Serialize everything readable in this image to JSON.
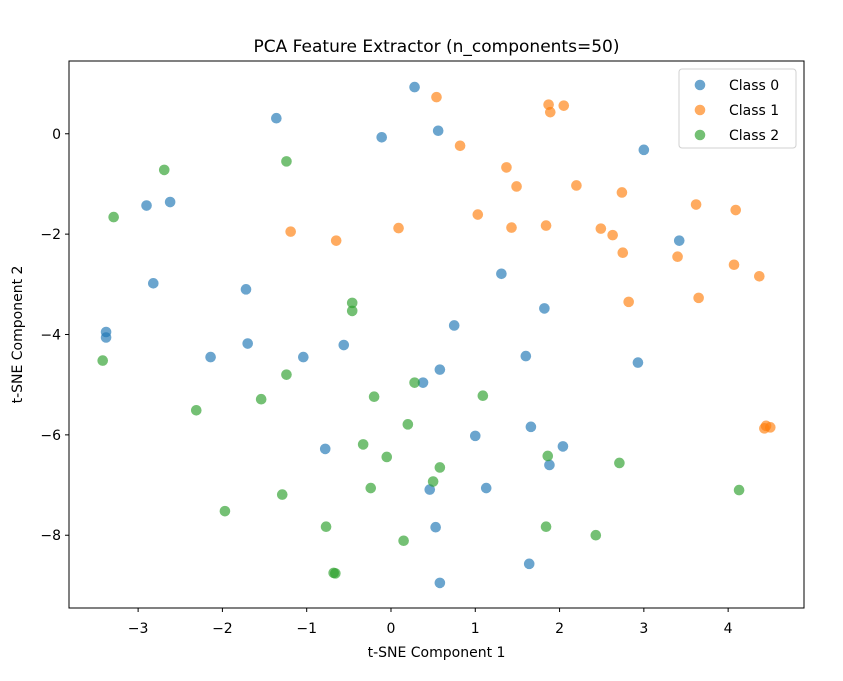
{
  "chart_data": {
    "type": "scatter",
    "title": "PCA Feature Extractor (n_components=50)",
    "xlabel": "t-SNE Component 1",
    "ylabel": "t-SNE Component 2",
    "xlim": [
      -3.82,
      4.9
    ],
    "ylim": [
      -9.45,
      1.45
    ],
    "xticks": [
      -3,
      -2,
      -1,
      0,
      1,
      2,
      3,
      4
    ],
    "yticks": [
      0,
      -2,
      -4,
      -6,
      -8
    ],
    "grid": false,
    "legend_position": "top-right",
    "series": [
      {
        "name": "Class 0",
        "color": "#1f77b4",
        "points": [
          [
            0.28,
            0.93
          ],
          [
            0.56,
            0.06
          ],
          [
            -0.11,
            -0.07
          ],
          [
            -1.36,
            0.31
          ],
          [
            3.0,
            -0.32
          ],
          [
            -2.9,
            -1.43
          ],
          [
            -2.62,
            -1.36
          ],
          [
            3.42,
            -2.13
          ],
          [
            -2.82,
            -2.98
          ],
          [
            -1.72,
            -3.1
          ],
          [
            1.31,
            -2.79
          ],
          [
            1.82,
            -3.48
          ],
          [
            -3.38,
            -3.95
          ],
          [
            -3.38,
            -4.06
          ],
          [
            0.75,
            -3.82
          ],
          [
            -1.7,
            -4.18
          ],
          [
            -2.14,
            -4.45
          ],
          [
            -1.04,
            -4.45
          ],
          [
            -0.56,
            -4.21
          ],
          [
            1.6,
            -4.43
          ],
          [
            0.58,
            -4.7
          ],
          [
            2.93,
            -4.56
          ],
          [
            0.38,
            -4.96
          ],
          [
            1.0,
            -6.02
          ],
          [
            1.66,
            -5.84
          ],
          [
            2.04,
            -6.23
          ],
          [
            -0.78,
            -6.28
          ],
          [
            1.88,
            -6.6
          ],
          [
            0.46,
            -7.09
          ],
          [
            1.13,
            -7.06
          ],
          [
            0.53,
            -7.84
          ],
          [
            1.64,
            -8.57
          ],
          [
            0.58,
            -8.95
          ]
        ]
      },
      {
        "name": "Class 1",
        "color": "#ff7f0e",
        "points": [
          [
            0.54,
            0.73
          ],
          [
            1.87,
            0.58
          ],
          [
            2.05,
            0.56
          ],
          [
            1.89,
            0.43
          ],
          [
            0.82,
            -0.24
          ],
          [
            1.37,
            -0.67
          ],
          [
            1.49,
            -1.05
          ],
          [
            2.2,
            -1.03
          ],
          [
            2.74,
            -1.17
          ],
          [
            3.62,
            -1.41
          ],
          [
            4.09,
            -1.52
          ],
          [
            1.03,
            -1.61
          ],
          [
            -1.19,
            -1.95
          ],
          [
            -0.65,
            -2.13
          ],
          [
            0.09,
            -1.88
          ],
          [
            1.43,
            -1.87
          ],
          [
            1.84,
            -1.83
          ],
          [
            2.49,
            -1.89
          ],
          [
            2.63,
            -2.02
          ],
          [
            2.75,
            -2.37
          ],
          [
            3.4,
            -2.45
          ],
          [
            4.07,
            -2.61
          ],
          [
            4.37,
            -2.84
          ],
          [
            3.65,
            -3.27
          ],
          [
            2.82,
            -3.35
          ],
          [
            4.45,
            -5.82
          ],
          [
            4.5,
            -5.85
          ],
          [
            4.43,
            -5.87
          ]
        ]
      },
      {
        "name": "Class 2",
        "color": "#2ca02c",
        "points": [
          [
            -1.24,
            -0.55
          ],
          [
            -2.69,
            -0.72
          ],
          [
            -3.29,
            -1.66
          ],
          [
            -0.46,
            -3.37
          ],
          [
            -0.46,
            -3.53
          ],
          [
            -3.42,
            -4.52
          ],
          [
            -1.24,
            -4.8
          ],
          [
            0.28,
            -4.96
          ],
          [
            1.09,
            -5.22
          ],
          [
            -2.31,
            -5.51
          ],
          [
            -1.54,
            -5.29
          ],
          [
            -0.2,
            -5.24
          ],
          [
            0.2,
            -5.79
          ],
          [
            -0.33,
            -6.19
          ],
          [
            -0.05,
            -6.44
          ],
          [
            1.86,
            -6.42
          ],
          [
            2.71,
            -6.56
          ],
          [
            0.58,
            -6.65
          ],
          [
            0.5,
            -6.93
          ],
          [
            -0.24,
            -7.06
          ],
          [
            -1.29,
            -7.19
          ],
          [
            4.13,
            -7.1
          ],
          [
            -1.97,
            -7.52
          ],
          [
            -0.77,
            -7.83
          ],
          [
            1.84,
            -7.83
          ],
          [
            2.43,
            -8.0
          ],
          [
            0.15,
            -8.11
          ],
          [
            -0.68,
            -8.75
          ],
          [
            -0.66,
            -8.76
          ]
        ]
      }
    ]
  }
}
